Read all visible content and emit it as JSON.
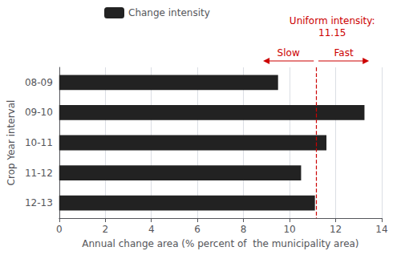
{
  "chart_data": {
    "type": "bar",
    "orientation": "horizontal",
    "categories": [
      "08-09",
      "09-10",
      "10-11",
      "11-12",
      "12-13"
    ],
    "series": [
      {
        "name": "Change intensity",
        "color": "#222222",
        "values": [
          9.5,
          13.25,
          11.6,
          10.5,
          11.1
        ]
      }
    ],
    "xlim": [
      0,
      14
    ],
    "xticks": [
      0,
      2,
      4,
      6,
      8,
      10,
      12,
      14
    ],
    "xlabel": "Annual change area (% percent of  the municipality area)",
    "ylabel": "Crop Year interval",
    "grid": true,
    "legend": "top",
    "reference_line": {
      "x": 11.15,
      "color": "#cc0000",
      "line_style": "dashed"
    },
    "annotations": [
      {
        "text": "Uniform intensity:",
        "color": "#cc0000"
      },
      {
        "text": "11.15",
        "color": "#cc0000"
      },
      {
        "text": "Slow",
        "color": "#cc0000",
        "arrow": "left"
      },
      {
        "text": "Fast",
        "color": "#cc0000",
        "arrow": "right"
      }
    ]
  }
}
